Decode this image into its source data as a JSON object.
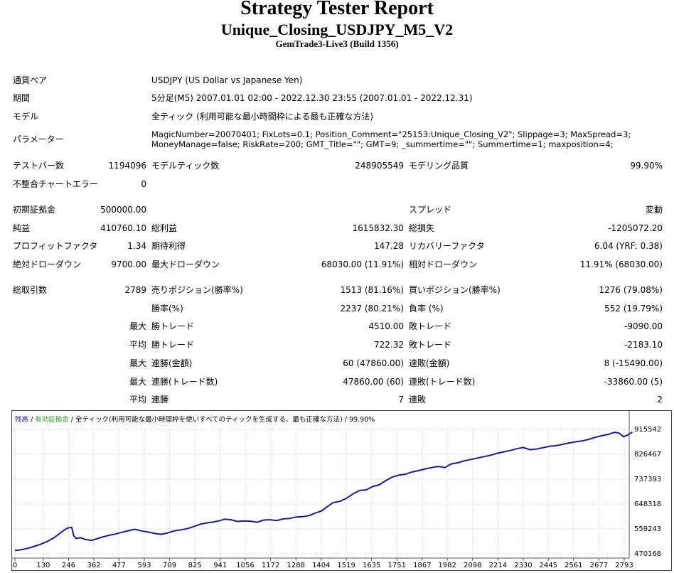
{
  "header": {
    "title": "Strategy Tester Report",
    "subtitle": "Unique_Closing_USDJPY_M5_V2",
    "server": "GemTrade3-Live3 (Build 1356)"
  },
  "info": {
    "pair_label": "通貨ペア",
    "pair_value": "USDJPY (US Dollar vs Japanese Yen)",
    "period_label": "期間",
    "period_value": "5分足(M5) 2007.01.01 02:00 - 2022.12.30 23:55 (2007.01.01 - 2022.12.31)",
    "model_label": "モデル",
    "model_value": "全ティック (利用可能な最小時間枠による最も正確な方法)",
    "params_label": "パラメーター",
    "params_line1": "MagicNumber=20070401; FixLots=0.1; Position_Comment=\"25153:Unique_Closing_V2\"; Slippage=3; MaxSpread=3;",
    "params_line2": "MoneyManage=false; RiskRate=200; GMT_Title=\"\"; GMT=9; _summertime=\"\"; Summertime=1; maxposition=4;"
  },
  "stats": {
    "bars_label": "テストバー数",
    "bars_value": "1194096",
    "ticks_label": "モデルティック数",
    "ticks_value": "248905549",
    "quality_label": "モデリング品質",
    "quality_value": "99.90%",
    "mismatch_label": "不整合チャートエラー",
    "mismatch_value": "0",
    "deposit_label": "初期証拠金",
    "deposit_value": "500000.00",
    "spread_label": "スプレッド",
    "spread_value": "変動",
    "net_label": "純益",
    "net_value": "410760.10",
    "gross_profit_label": "総利益",
    "gross_profit_value": "1615832.30",
    "gross_loss_label": "総損失",
    "gross_loss_value": "-1205072.20",
    "pf_label": "プロフィットファクタ",
    "pf_value": "1.34",
    "expected_label": "期待利得",
    "expected_value": "147.28",
    "recovery_label": "リカバリーファクタ",
    "recovery_value": "6.04 (YRF: 0.38)",
    "abs_dd_label": "絶対ドローダウン",
    "abs_dd_value": "9700.00",
    "max_dd_label": "最大ドローダウン",
    "max_dd_value": "68030.00 (11.91%)",
    "rel_dd_label": "相対ドローダウン",
    "rel_dd_value": "11.91% (68030.00)",
    "total_trades_label": "総取引数",
    "total_trades_value": "2789",
    "short_label": "売りポジション(勝率%)",
    "short_value": "1513 (81.16%)",
    "long_label": "買いポジション(勝率%)",
    "long_value": "1276 (79.08%)",
    "winrate_label": "勝率(%)",
    "winrate_value": "2237 (80.21%)",
    "lossrate_label": "負率 (%)",
    "lossrate_value": "552 (19.79%)",
    "max_word": "最大",
    "avg_word": "平均",
    "largest_win_label": "勝トレード",
    "largest_win_value": "4510.00",
    "largest_loss_label": "敗トレード",
    "largest_loss_value": "-9090.00",
    "avg_win_label": "勝トレード",
    "avg_win_value": "722.32",
    "avg_loss_label": "敗トレード",
    "avg_loss_value": "-2183.10",
    "max_consec_win_label": "連勝(金額)",
    "max_consec_win_value": "60 (47860.00)",
    "max_consec_loss_label": "連敗(金額)",
    "max_consec_loss_value": "8 (-15490.00)",
    "max_consec_profit_label": "連勝(トレード数)",
    "max_consec_profit_value": "47860.00 (60)",
    "max_consec_lossamt_label": "連敗(トレード数)",
    "max_consec_lossamt_value": "-33860.00 (5)",
    "avg_consec_win_label": "連勝",
    "avg_consec_win_value": "7",
    "avg_consec_loss_label": "連敗",
    "avg_consec_loss_value": "2"
  },
  "chart_data": {
    "type": "line",
    "legend_balance": "残高",
    "legend_sep1": " / ",
    "legend_equity": "有効証拠金",
    "legend_rest": " / 全ティック(利用可能な最小時間枠を使いすべてのティックを生成する、最も正確な方法) / 99.90%",
    "x_ticks": [
      "0",
      "130",
      "246",
      "362",
      "477",
      "593",
      "709",
      "825",
      "941",
      "1056",
      "1172",
      "1288",
      "1404",
      "1519",
      "1635",
      "1751",
      "1867",
      "1982",
      "2098",
      "2214",
      "2330",
      "2445",
      "2561",
      "2677",
      "2793"
    ],
    "y_ticks": [
      "915542",
      "826467",
      "737393",
      "648318",
      "559243",
      "470168"
    ],
    "y_range": [
      470168,
      915542
    ],
    "x_range": [
      0,
      2850
    ],
    "series": [
      {
        "color": "#1a1a9c",
        "x": [
          0,
          30,
          60,
          90,
          120,
          150,
          180,
          200,
          220,
          240,
          260,
          270,
          280,
          300,
          320,
          350,
          380,
          400,
          430,
          460,
          490,
          520,
          550,
          580,
          610,
          640,
          670,
          700,
          730,
          760,
          790,
          820,
          850,
          880,
          910,
          940,
          960,
          990,
          1020,
          1050,
          1080,
          1110,
          1140,
          1170,
          1200,
          1230,
          1260,
          1290,
          1320,
          1350,
          1380,
          1400,
          1410,
          1430,
          1460,
          1490,
          1520,
          1550,
          1580,
          1610,
          1640,
          1670,
          1700,
          1730,
          1760,
          1790,
          1820,
          1850,
          1880,
          1910,
          1940,
          1970,
          2000,
          2030,
          2060,
          2090,
          2120,
          2150,
          2180,
          2210,
          2240,
          2270,
          2300,
          2330,
          2360,
          2390,
          2420,
          2450,
          2480,
          2510,
          2540,
          2570,
          2600,
          2630,
          2660,
          2690,
          2720,
          2750,
          2770,
          2790,
          2810,
          2830
        ],
        "y": [
          482000,
          485000,
          490000,
          497000,
          505000,
          515000,
          528000,
          540000,
          552000,
          562000,
          565000,
          535000,
          525000,
          528000,
          522000,
          518000,
          525000,
          530000,
          536000,
          541000,
          547000,
          553000,
          558000,
          552000,
          548000,
          543000,
          540000,
          545000,
          552000,
          556000,
          560000,
          568000,
          576000,
          581000,
          584000,
          589000,
          594000,
          592000,
          586000,
          588000,
          587000,
          583000,
          591000,
          592000,
          589000,
          595000,
          597000,
          602000,
          603000,
          607000,
          617000,
          622000,
          626000,
          638000,
          654000,
          658000,
          669000,
          685000,
          697000,
          699000,
          711000,
          717000,
          732000,
          745000,
          752000,
          755000,
          763000,
          768000,
          774000,
          779000,
          783000,
          779000,
          792000,
          796000,
          803000,
          808000,
          813000,
          818000,
          823000,
          830000,
          835000,
          840000,
          846000,
          851000,
          843000,
          845000,
          850000,
          855000,
          857000,
          862000,
          867000,
          871000,
          874000,
          880000,
          887000,
          893000,
          898000,
          905000,
          902000,
          889000,
          896000,
          906000
        ]
      }
    ]
  }
}
